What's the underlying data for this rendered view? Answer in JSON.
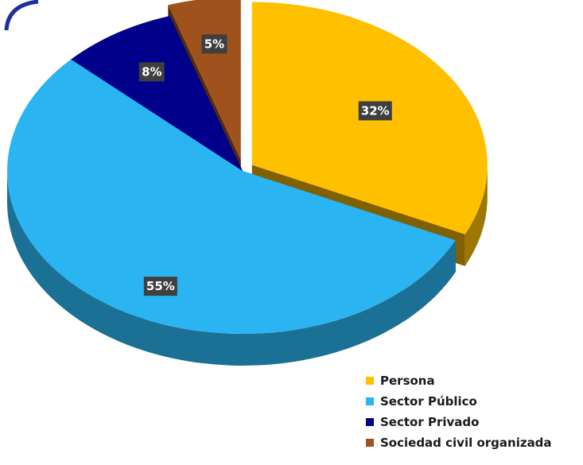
{
  "chart_data": {
    "type": "pie",
    "title": "",
    "categories": [
      "Persona",
      "Sector Público",
      "Sector Privado",
      "Sociedad civil organizada"
    ],
    "values": [
      32,
      55,
      8,
      5
    ],
    "labels": [
      "32%",
      "55%",
      "8%",
      "5%"
    ],
    "colors": [
      "#FFC000",
      "#2AB4F1",
      "#00008B",
      "#A0521D"
    ],
    "exploded": [
      "Persona",
      "Sociedad civil organizada"
    ],
    "legend_position": "bottom-right",
    "style": "3D"
  }
}
